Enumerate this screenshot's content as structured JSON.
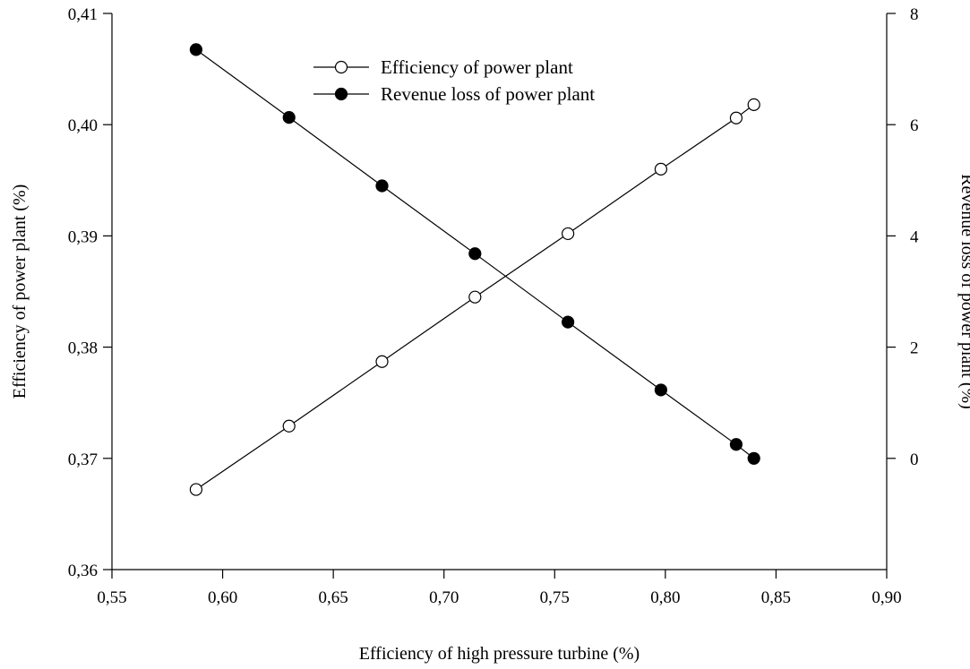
{
  "chart_data": {
    "type": "line",
    "xlabel": "Efficiency of high pressure turbine  (%)",
    "ylabel_left": "Efficiency of power plant (%)",
    "ylabel_right": "Revenue loss of power plant (%)",
    "xlim": [
      0.55,
      0.9
    ],
    "ylim_left": [
      0.36,
      0.41
    ],
    "ylim_right": [
      -2,
      8
    ],
    "x_ticks": [
      "0,55",
      "0,60",
      "0,65",
      "0,70",
      "0,75",
      "0,80",
      "0,85",
      "0,90"
    ],
    "y_left_ticks": [
      "0,36",
      "0,37",
      "0,38",
      "0,39",
      "0,40",
      "0,41"
    ],
    "y_right_ticks": [
      "0",
      "2",
      "4",
      "6",
      "8"
    ],
    "grid": false,
    "legend_position": "top-center",
    "series": [
      {
        "name": "Efficiency of power plant",
        "axis": "left",
        "marker": "open-circle",
        "x": [
          0.588,
          0.63,
          0.672,
          0.714,
          0.756,
          0.798,
          0.832,
          0.84
        ],
        "y": [
          0.3672,
          0.3729,
          0.3787,
          0.3845,
          0.3902,
          0.396,
          0.4006,
          0.4018
        ]
      },
      {
        "name": "Revenue loss of power plant",
        "axis": "right",
        "marker": "filled-circle",
        "x": [
          0.588,
          0.63,
          0.672,
          0.714,
          0.756,
          0.798,
          0.832,
          0.84
        ],
        "y": [
          7.35,
          6.13,
          4.9,
          3.68,
          2.45,
          1.23,
          0.25,
          0.0
        ]
      }
    ]
  }
}
